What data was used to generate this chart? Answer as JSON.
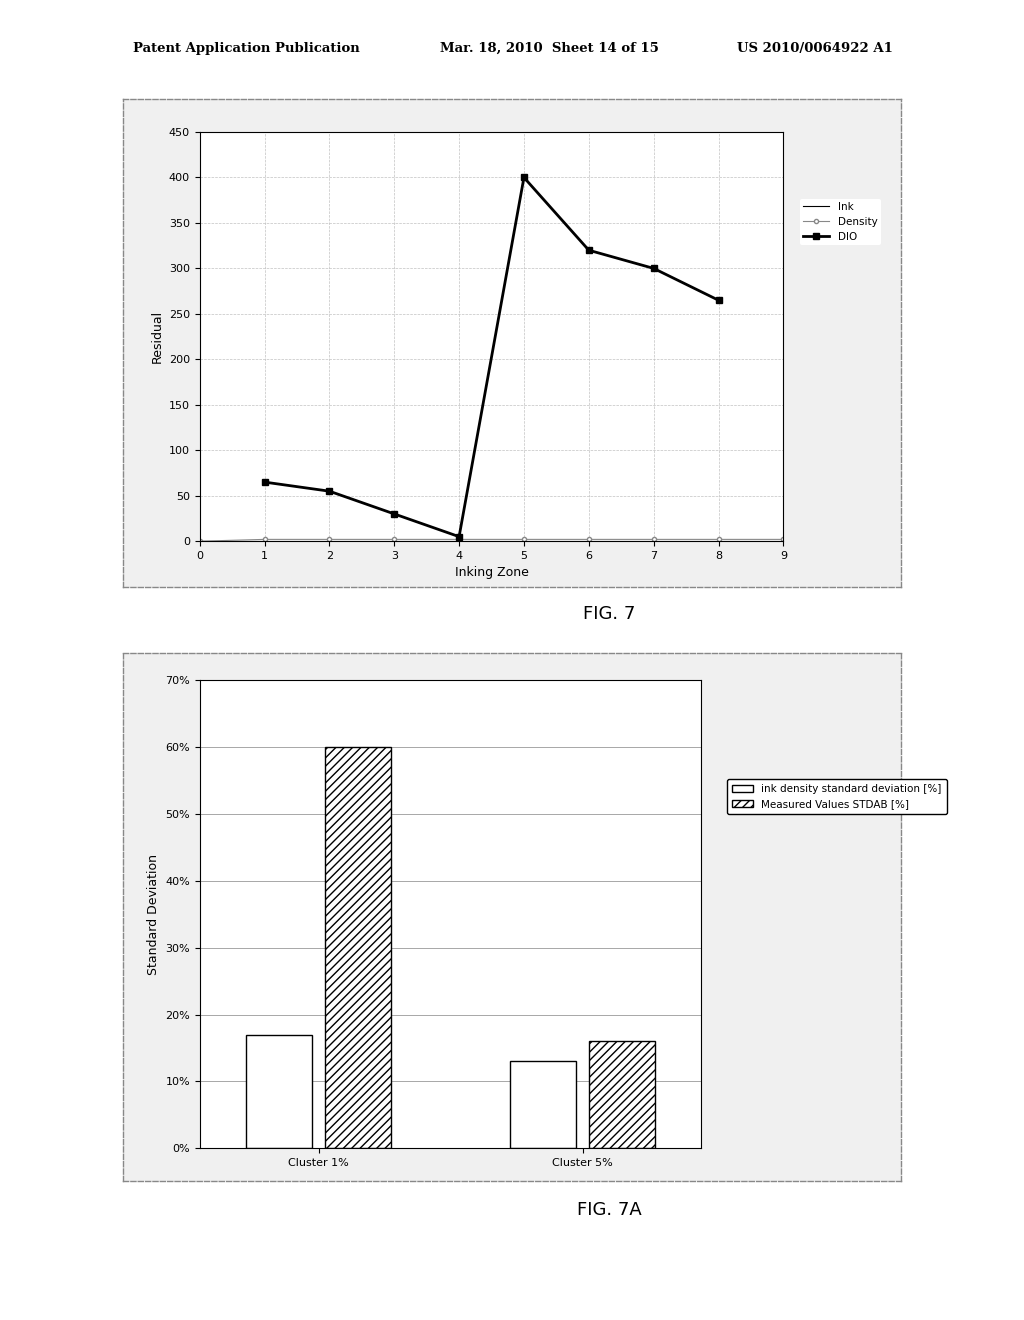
{
  "fig7": {
    "xlabel": "Inking Zone",
    "ylabel": "Residual",
    "xlim": [
      0,
      9
    ],
    "ylim": [
      0,
      450
    ],
    "xticks": [
      0,
      1,
      2,
      3,
      4,
      5,
      6,
      7,
      8,
      9
    ],
    "yticks": [
      0,
      50,
      100,
      150,
      200,
      250,
      300,
      350,
      400,
      450
    ],
    "ink_x": [
      0,
      1,
      2,
      3,
      4,
      5,
      6,
      7,
      8,
      9
    ],
    "ink_y": [
      0,
      0,
      0,
      0,
      0,
      0,
      0,
      0,
      0,
      0
    ],
    "density_x": [
      0,
      1,
      2,
      3,
      4,
      5,
      6,
      7,
      8,
      9
    ],
    "density_y": [
      0,
      2,
      2,
      2,
      2,
      2,
      2,
      2,
      2,
      2
    ],
    "dio_x": [
      1,
      2,
      3,
      4,
      5,
      6,
      7,
      8
    ],
    "dio_y": [
      65,
      55,
      30,
      5,
      400,
      320,
      300,
      265
    ],
    "legend_ink": "Ink",
    "legend_density": "Density",
    "legend_dio": "DIO"
  },
  "fig7a": {
    "xlabel": "",
    "ylabel": "Standard Deviation",
    "categories": [
      "Cluster 1%",
      "Cluster 5%"
    ],
    "solid_values": [
      0.17,
      0.13
    ],
    "hatch_values": [
      0.6,
      0.16
    ],
    "yticks": [
      0.0,
      0.1,
      0.2,
      0.3,
      0.4,
      0.5,
      0.6,
      0.7
    ],
    "ylim": [
      0,
      0.7
    ],
    "legend_solid": "ink density standard deviation [%]",
    "legend_hatch": "Measured Values STDAB [%]"
  },
  "header_left": "Patent Application Publication",
  "header_mid": "Mar. 18, 2010  Sheet 14 of 15",
  "header_right": "US 2010/0064922 A1",
  "fig7_caption": "FIG. 7",
  "fig7a_caption": "FIG. 7A",
  "bg_color": "#ffffff",
  "plot_bg": "#ffffff",
  "grid_color": "#bbbbbb"
}
